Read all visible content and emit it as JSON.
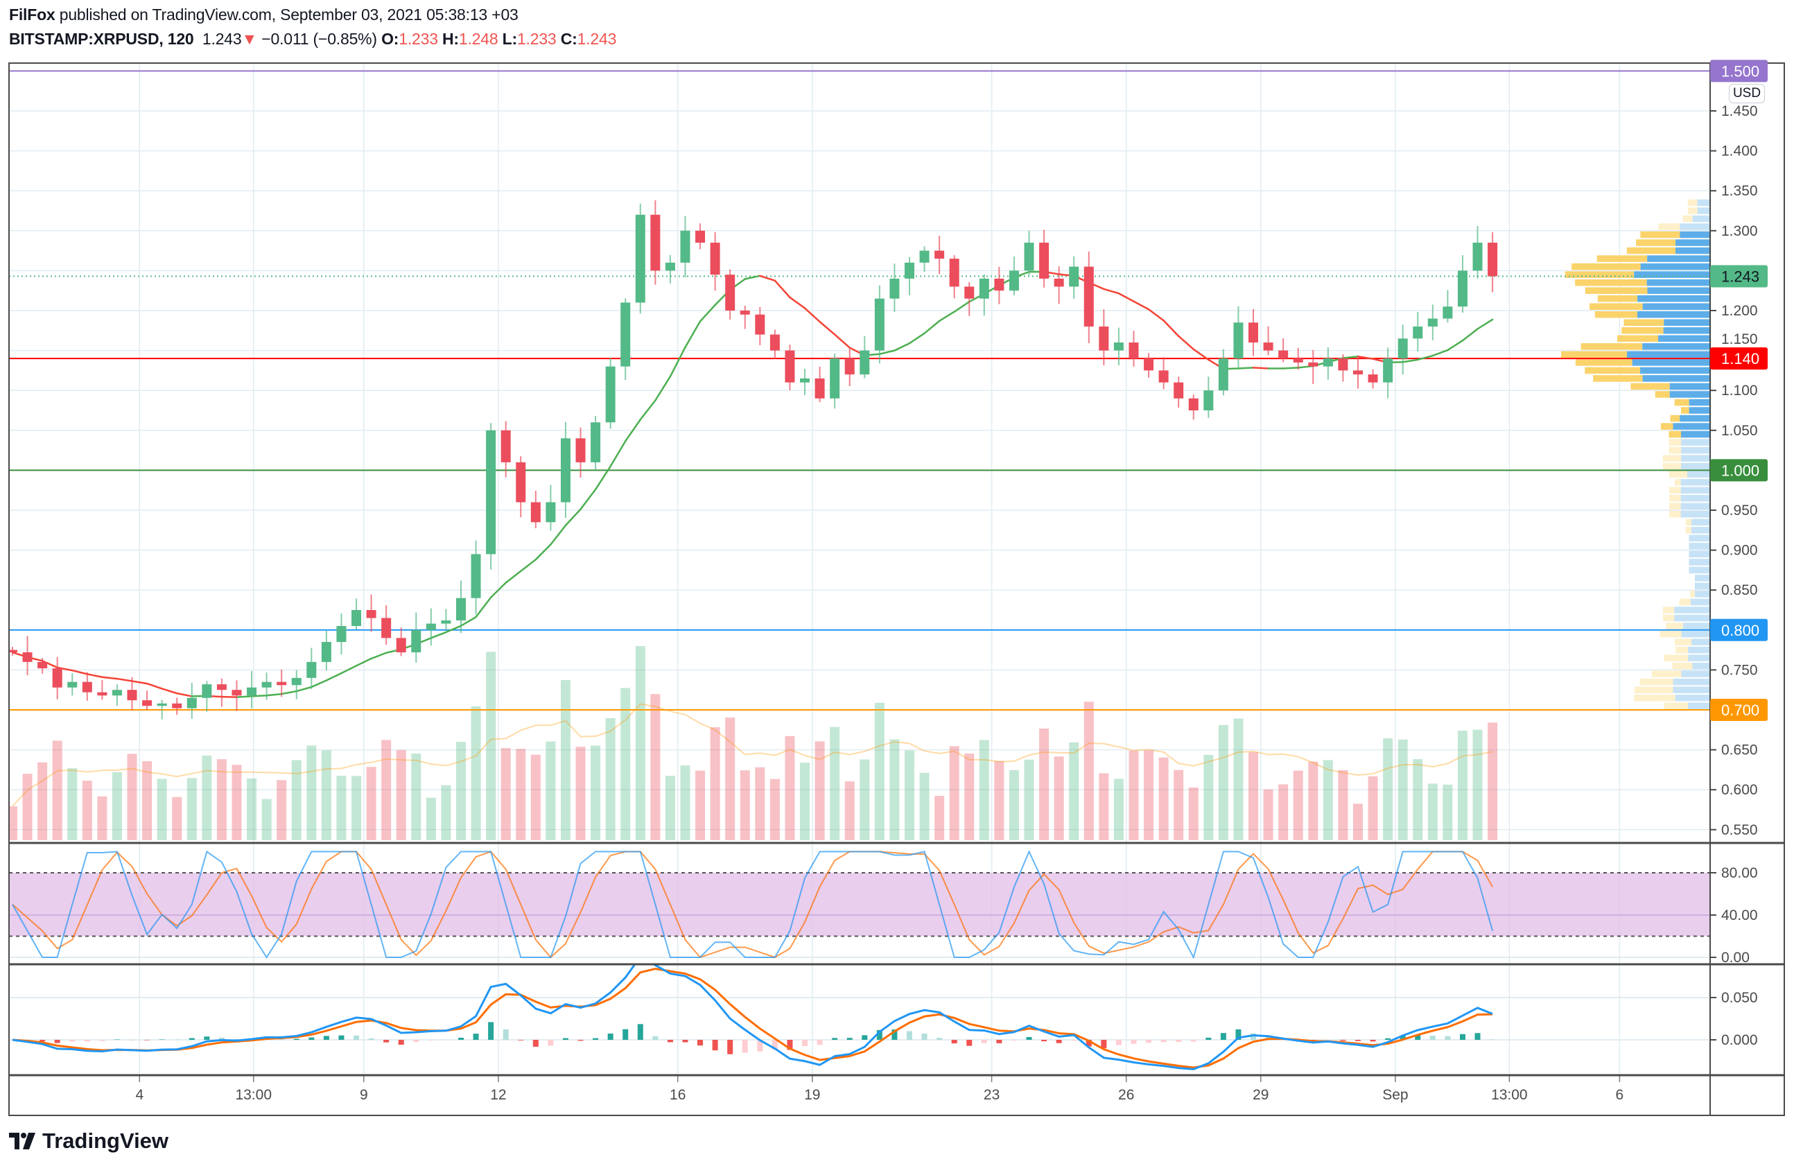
{
  "header": {
    "publisher": "FilFox",
    "published_text": "published on TradingView.com, September 03, 2021 05:38:13 +03",
    "symbol": "BITSTAMP:XRPUSD, 120",
    "last": "1.243",
    "direction_glyph": "▼",
    "change": "−0.011 (−0.85%)",
    "o_label": "O:",
    "o": "1.233",
    "h_label": "H:",
    "h": "1.248",
    "l_label": "L:",
    "l": "1.233",
    "c_label": "C:",
    "c": "1.243"
  },
  "price_axis": {
    "currency": "USD",
    "ticks": [
      "1.450",
      "1.400",
      "1.350",
      "1.300",
      "1.200",
      "1.150",
      "1.100",
      "1.050",
      "0.950",
      "0.900",
      "0.850",
      "0.750",
      "0.650",
      "0.600",
      "0.550"
    ]
  },
  "levels": [
    {
      "price": 1.5,
      "label": "1.500",
      "color": "#9575cd"
    },
    {
      "price": 1.14,
      "label": "1.140",
      "color": "#ff0000"
    },
    {
      "price": 1.0,
      "label": "1.000",
      "color": "#388e3c"
    },
    {
      "price": 0.8,
      "label": "0.800",
      "color": "#2196f3"
    },
    {
      "price": 0.7,
      "label": "0.700",
      "color": "#ff9800"
    }
  ],
  "current_price": {
    "value": 1.243,
    "label": "1.243",
    "color": "#53b987"
  },
  "time_axis": {
    "ticks": [
      {
        "label": "4",
        "date": "2021-08-04T00:00"
      },
      {
        "label": "13:00",
        "date": "2021-08-06T13:00"
      },
      {
        "label": "9",
        "date": "2021-08-09T00:00"
      },
      {
        "label": "12",
        "date": "2021-08-12T00:00"
      },
      {
        "label": "16",
        "date": "2021-08-16T00:00"
      },
      {
        "label": "19",
        "date": "2021-08-19T00:00"
      },
      {
        "label": "23",
        "date": "2021-08-23T00:00"
      },
      {
        "label": "26",
        "date": "2021-08-26T00:00"
      },
      {
        "label": "29",
        "date": "2021-08-29T00:00"
      },
      {
        "label": "Sep",
        "date": "2021-09-01T00:00"
      },
      {
        "label": "13:00",
        "date": "2021-09-03T13:00"
      },
      {
        "label": "6",
        "date": "2021-09-06T00:00"
      }
    ]
  },
  "rsi_pane": {
    "ticks": [
      "80.00",
      "40.00",
      "0.00"
    ],
    "upper": 80,
    "lower": 20,
    "band_color": "#e1bee7"
  },
  "macd_pane": {
    "ticks": [
      "0.050",
      "0.000"
    ]
  },
  "branding": {
    "logo_text": "TradingView"
  },
  "colors": {
    "up": "#53b987",
    "down": "#eb4d5c",
    "macd": "#2196f3",
    "signal": "#ff6d00",
    "grid": "#e1ecf2"
  },
  "chart_data": {
    "type": "candlestick",
    "title": "BITSTAMP:XRPUSD, 120",
    "ylabel": "USD",
    "ylim": [
      0.53,
      1.52
    ],
    "first_open": 0.775,
    "closes": [
      0.772,
      0.76,
      0.752,
      0.728,
      0.735,
      0.722,
      0.718,
      0.725,
      0.712,
      0.705,
      0.708,
      0.702,
      0.715,
      0.732,
      0.725,
      0.718,
      0.728,
      0.735,
      0.731,
      0.74,
      0.76,
      0.785,
      0.805,
      0.825,
      0.815,
      0.79,
      0.772,
      0.8,
      0.808,
      0.812,
      0.84,
      0.895,
      1.05,
      1.01,
      0.96,
      0.935,
      0.96,
      1.04,
      1.01,
      1.06,
      1.13,
      1.21,
      1.32,
      1.25,
      1.26,
      1.3,
      1.285,
      1.245,
      1.2,
      1.195,
      1.17,
      1.15,
      1.11,
      1.115,
      1.09,
      1.14,
      1.12,
      1.15,
      1.215,
      1.24,
      1.26,
      1.275,
      1.265,
      1.23,
      1.215,
      1.24,
      1.225,
      1.25,
      1.285,
      1.24,
      1.23,
      1.255,
      1.18,
      1.15,
      1.16,
      1.14,
      1.125,
      1.11,
      1.09,
      1.075,
      1.1,
      1.14,
      1.185,
      1.16,
      1.15,
      1.14,
      1.135,
      1.13,
      1.14,
      1.125,
      1.12,
      1.11,
      1.14,
      1.165,
      1.18,
      1.19,
      1.205,
      1.25,
      1.285,
      1.243
    ]
  }
}
